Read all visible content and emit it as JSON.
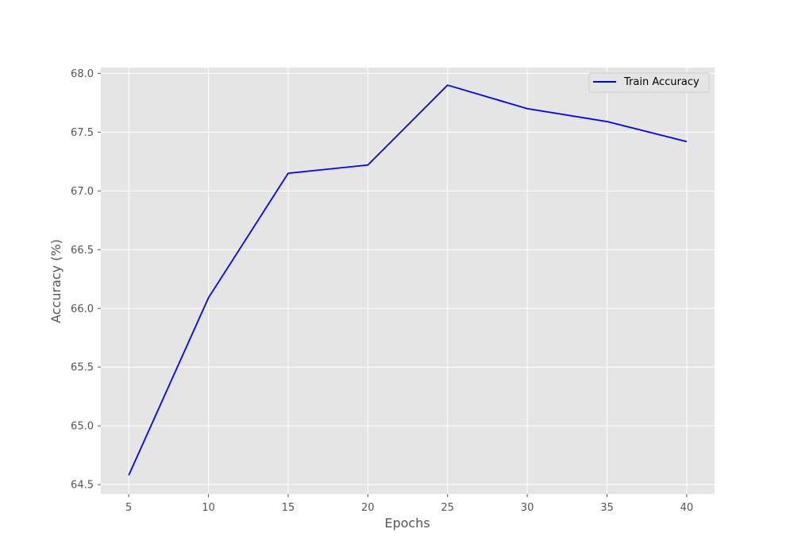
{
  "chart_data": {
    "type": "line",
    "title": "",
    "xlabel": "Epochs",
    "ylabel": "Accuracy (%)",
    "x": [
      5,
      10,
      15,
      20,
      25,
      30,
      35,
      40
    ],
    "series": [
      {
        "name": "Train Accuracy",
        "color": "#0000ff",
        "values": [
          64.58,
          66.09,
          67.15,
          67.22,
          67.9,
          67.7,
          67.59,
          67.42
        ]
      }
    ],
    "xlim": [
      3.25,
      41.75
    ],
    "ylim": [
      64.42,
      68.05
    ],
    "xticks": [
      5,
      10,
      15,
      20,
      25,
      30,
      35,
      40
    ],
    "xtick_labels": [
      "5",
      "10",
      "15",
      "20",
      "25",
      "30",
      "35",
      "40"
    ],
    "yticks": [
      64.5,
      65.0,
      65.5,
      66.0,
      66.5,
      67.0,
      67.5,
      68.0
    ],
    "ytick_labels": [
      "64.5",
      "65.0",
      "65.5",
      "66.0",
      "66.5",
      "67.0",
      "67.5",
      "68.0"
    ],
    "grid": true,
    "legend_position": "upper right",
    "background_color": "#e5e5e5",
    "grid_color": "#ffffff",
    "text_color": "#555555"
  }
}
